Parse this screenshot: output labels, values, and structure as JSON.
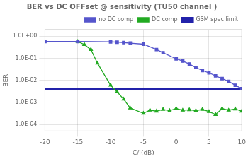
{
  "chart_data": {
    "type": "line",
    "title": "BER vs DC OFFset @ sensitivity (TU50 channel )",
    "x_label": "C/I(dB)",
    "y_label": "BER",
    "log": "y",
    "grid": true,
    "legend": "upper right",
    "xlim": [
      -20,
      10
    ],
    "xticks": [
      -20,
      -15,
      -10,
      -5,
      0,
      5,
      10
    ],
    "ylim": [
      5e-05,
      2.0
    ],
    "yticks": [
      {
        "value": 0.0001,
        "label": "1.0E-04"
      },
      {
        "value": 0.001,
        "label": "1.0E-03"
      },
      {
        "value": 0.01,
        "label": "1.0E-02"
      },
      {
        "value": 0.1,
        "label": "1.0E-01"
      },
      {
        "value": 1,
        "label": "1.0E+00"
      }
    ],
    "series": [
      {
        "name": "no DC comp",
        "color": "#5555cc",
        "marker": "square",
        "line_style": "solid",
        "x": [
          -20,
          -15,
          -10,
          -9,
          -8,
          -7,
          -5,
          -3,
          -2,
          0,
          1,
          2,
          3,
          4,
          5,
          6,
          7,
          8,
          9,
          10
        ],
        "values": [
          0.58,
          0.58,
          0.56,
          0.54,
          0.52,
          0.49,
          0.44,
          0.25,
          0.18,
          0.095,
          0.075,
          0.055,
          0.038,
          0.028,
          0.022,
          0.016,
          0.012,
          0.009,
          0.006,
          0.0042
        ]
      },
      {
        "name": "DC comp",
        "color": "#22aa22",
        "marker": "triangle",
        "line_style": "solid",
        "x": [
          -15,
          -14,
          -13,
          -12,
          -10,
          -9,
          -8,
          -7,
          -5,
          -4,
          -3,
          -2,
          -1,
          0,
          1,
          2,
          3,
          4,
          5,
          6,
          7,
          8,
          9,
          10
        ],
        "values": [
          0.58,
          0.42,
          0.25,
          0.06,
          0.006,
          0.003,
          0.0014,
          0.00055,
          0.00032,
          0.00044,
          0.0004,
          0.00048,
          0.00042,
          0.00052,
          0.00044,
          0.00046,
          0.00042,
          0.00048,
          0.00038,
          0.00028,
          0.00052,
          0.00044,
          0.0005,
          0.0004
        ]
      },
      {
        "name": "GSM spec limit",
        "color": "#2222aa",
        "type": "hline",
        "line_style": "solid",
        "values": [
          0.004
        ]
      }
    ]
  }
}
